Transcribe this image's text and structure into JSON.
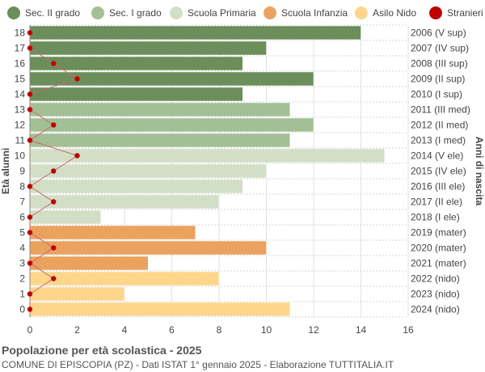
{
  "legend": [
    {
      "label": "Sec. II grado",
      "color": "#6b8e5a"
    },
    {
      "label": "Sec. I grado",
      "color": "#a3bf96"
    },
    {
      "label": "Scuola Primaria",
      "color": "#d2dfc6"
    },
    {
      "label": "Scuola Infanzia",
      "color": "#eba25e"
    },
    {
      "label": "Asilo Nido",
      "color": "#fdd68c"
    },
    {
      "label": "Stranieri",
      "color": "#c00000"
    }
  ],
  "footer": {
    "title": "Popolazione per età scolastica - 2025",
    "subtitle": "COMUNE DI EPISCOPIA (PZ) - Dati ISTAT 1° gennaio 2025 - Elaborazione TUTTITALIA.IT"
  },
  "chart_data": {
    "type": "bar",
    "orientation": "horizontal",
    "ylabel": "Età alunni",
    "ylabel_right": "Anni di nascita",
    "xlim": [
      0,
      16
    ],
    "x_ticks": [
      0,
      2,
      4,
      6,
      8,
      10,
      12,
      14,
      16
    ],
    "grid": true,
    "legend_position": "top",
    "rows": [
      {
        "age": 18,
        "birth": "2006 (V sup)",
        "value": 14,
        "stranieri": 0,
        "group": "Sec. II grado"
      },
      {
        "age": 17,
        "birth": "2007 (IV sup)",
        "value": 10,
        "stranieri": 0,
        "group": "Sec. II grado"
      },
      {
        "age": 16,
        "birth": "2008 (III sup)",
        "value": 9,
        "stranieri": 1,
        "group": "Sec. II grado"
      },
      {
        "age": 15,
        "birth": "2009 (II sup)",
        "value": 12,
        "stranieri": 2,
        "group": "Sec. II grado"
      },
      {
        "age": 14,
        "birth": "2010 (I sup)",
        "value": 9,
        "stranieri": 0,
        "group": "Sec. II grado"
      },
      {
        "age": 13,
        "birth": "2011 (III med)",
        "value": 11,
        "stranieri": 0,
        "group": "Sec. I grado"
      },
      {
        "age": 12,
        "birth": "2012 (II med)",
        "value": 12,
        "stranieri": 1,
        "group": "Sec. I grado"
      },
      {
        "age": 11,
        "birth": "2013 (I med)",
        "value": 11,
        "stranieri": 0,
        "group": "Sec. I grado"
      },
      {
        "age": 10,
        "birth": "2014 (V ele)",
        "value": 15,
        "stranieri": 2,
        "group": "Scuola Primaria"
      },
      {
        "age": 9,
        "birth": "2015 (IV ele)",
        "value": 10,
        "stranieri": 1,
        "group": "Scuola Primaria"
      },
      {
        "age": 8,
        "birth": "2016 (III ele)",
        "value": 9,
        "stranieri": 0,
        "group": "Scuola Primaria"
      },
      {
        "age": 7,
        "birth": "2017 (II ele)",
        "value": 8,
        "stranieri": 1,
        "group": "Scuola Primaria"
      },
      {
        "age": 6,
        "birth": "2018 (I ele)",
        "value": 3,
        "stranieri": 0,
        "group": "Scuola Primaria"
      },
      {
        "age": 5,
        "birth": "2019 (mater)",
        "value": 7,
        "stranieri": 0,
        "group": "Scuola Infanzia"
      },
      {
        "age": 4,
        "birth": "2020 (mater)",
        "value": 10,
        "stranieri": 1,
        "group": "Scuola Infanzia"
      },
      {
        "age": 3,
        "birth": "2021 (mater)",
        "value": 5,
        "stranieri": 0,
        "group": "Scuola Infanzia"
      },
      {
        "age": 2,
        "birth": "2022 (nido)",
        "value": 8,
        "stranieri": 1,
        "group": "Asilo Nido"
      },
      {
        "age": 1,
        "birth": "2023 (nido)",
        "value": 4,
        "stranieri": 0,
        "group": "Asilo Nido"
      },
      {
        "age": 0,
        "birth": "2024 (nido)",
        "value": 11,
        "stranieri": 0,
        "group": "Asilo Nido"
      }
    ]
  }
}
